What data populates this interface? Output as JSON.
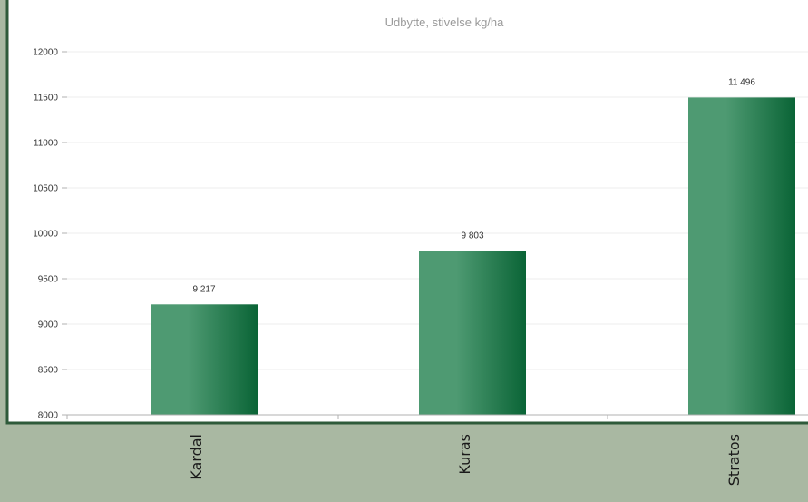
{
  "chart_data": {
    "type": "bar",
    "title": "Udbytte, stivelse kg/ha",
    "categories": [
      "Kardal",
      "Kuras",
      "Stratos"
    ],
    "values": [
      9217,
      9803,
      11496
    ],
    "value_labels": [
      "9 217",
      "9 803",
      "11 496"
    ],
    "ylim": [
      8000,
      12000
    ],
    "yticks": [
      8000,
      8500,
      9000,
      9500,
      10000,
      10500,
      11000,
      11500,
      12000
    ],
    "ytick_labels": [
      "8000",
      "8500",
      "9000",
      "9500",
      "10000",
      "10500",
      "11000",
      "11500",
      "12000"
    ],
    "grid": true,
    "xlabel": "",
    "ylabel": ""
  },
  "colors": {
    "page_background": "#a9b8a2",
    "plot_background": "#ffffff",
    "frame": "#2e5a3a",
    "bar_dark": "#0a6436",
    "bar_light": "#4e9a72",
    "grid": "#ececec",
    "axis": "#b0b0b0"
  }
}
